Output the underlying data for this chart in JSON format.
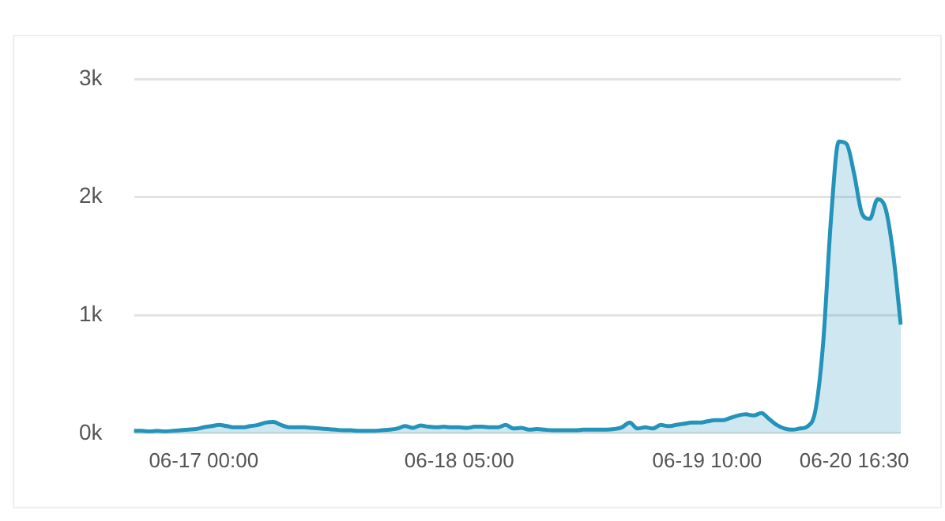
{
  "chart_data": {
    "type": "area",
    "categories": [
      null,
      null,
      null,
      null,
      null,
      null,
      null,
      null,
      null,
      "06-17 00:00",
      null,
      null,
      null,
      null,
      null,
      null,
      null,
      null,
      null,
      null,
      null,
      null,
      null,
      null,
      null,
      null,
      null,
      null,
      null,
      null,
      null,
      null,
      null,
      null,
      null,
      null,
      null,
      null,
      null,
      null,
      null,
      null,
      "06-18 05:00",
      null,
      null,
      null,
      null,
      null,
      null,
      null,
      null,
      null,
      null,
      null,
      null,
      null,
      null,
      null,
      null,
      null,
      null,
      null,
      null,
      null,
      null,
      null,
      null,
      null,
      null,
      null,
      null,
      null,
      null,
      null,
      "06-19 10:00",
      null,
      null,
      null,
      null,
      null,
      null,
      null,
      null,
      null,
      null,
      null,
      null,
      null,
      null,
      null,
      null,
      null,
      null,
      "06-20 16:30",
      null,
      null,
      null,
      null,
      null,
      null
    ],
    "series": [
      {
        "color": "#2393b9",
        "values": [
          20,
          20,
          15,
          20,
          15,
          20,
          25,
          30,
          35,
          50,
          60,
          70,
          60,
          50,
          50,
          60,
          70,
          90,
          95,
          70,
          50,
          50,
          50,
          45,
          40,
          35,
          30,
          25,
          25,
          20,
          20,
          20,
          25,
          30,
          40,
          60,
          45,
          65,
          55,
          50,
          55,
          50,
          50,
          45,
          55,
          55,
          50,
          50,
          70,
          40,
          45,
          30,
          35,
          30,
          25,
          25,
          25,
          25,
          30,
          30,
          30,
          30,
          35,
          50,
          90,
          40,
          50,
          40,
          70,
          60,
          70,
          80,
          90,
          90,
          100,
          110,
          110,
          130,
          150,
          160,
          150,
          170,
          120,
          70,
          40,
          30,
          40,
          60,
          200,
          780,
          1820,
          2470,
          2450,
          2190,
          1860,
          1815,
          1980,
          1910,
          1530,
          920
        ]
      }
    ],
    "ylim": [
      0,
      3000
    ],
    "yticks": [
      {
        "value": 0,
        "label": "0k"
      },
      {
        "value": 1000,
        "label": "1k"
      },
      {
        "value": 2000,
        "label": "2k"
      },
      {
        "value": 3000,
        "label": "3k"
      }
    ],
    "grid": "y",
    "legend": false,
    "marker": "none"
  }
}
